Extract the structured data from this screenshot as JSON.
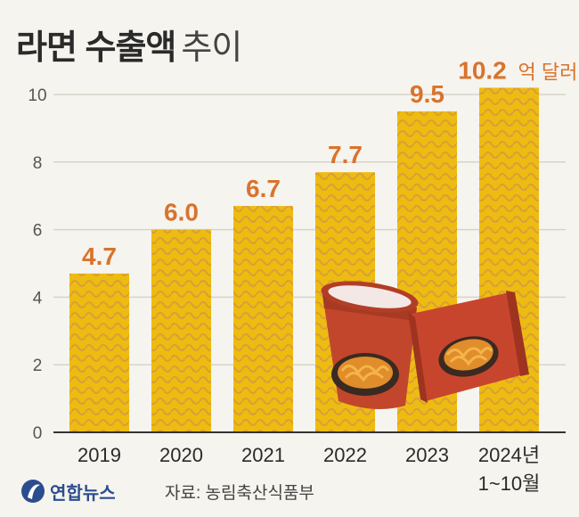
{
  "title": {
    "main": "라면 수출액",
    "sub": "추이"
  },
  "footer": {
    "logo_text": "연합뉴스",
    "source": "자료: 농림축산식품부"
  },
  "colors": {
    "bar": "#eebc10",
    "wave": "#d9a038",
    "value_label": "#d9732d",
    "axis_text": "#2a2a2a",
    "grid": "#d6d3c9"
  },
  "chart_data": {
    "type": "bar",
    "title": "라면 수출액 추이",
    "categories": [
      "2019",
      "2020",
      "2021",
      "2022",
      "2023",
      "2024년"
    ],
    "category_sublabels": [
      "",
      "",
      "",
      "",
      "",
      "1~10월"
    ],
    "values": [
      4.7,
      6.0,
      6.7,
      7.7,
      9.5,
      10.2
    ],
    "value_labels": [
      "4.7",
      "6.0",
      "6.7",
      "7.7",
      "9.5",
      "10.2"
    ],
    "unit": "억 달러",
    "yticks": [
      0,
      2,
      4,
      6,
      8,
      10
    ],
    "ylim": [
      0,
      10.2
    ],
    "grid": true
  }
}
